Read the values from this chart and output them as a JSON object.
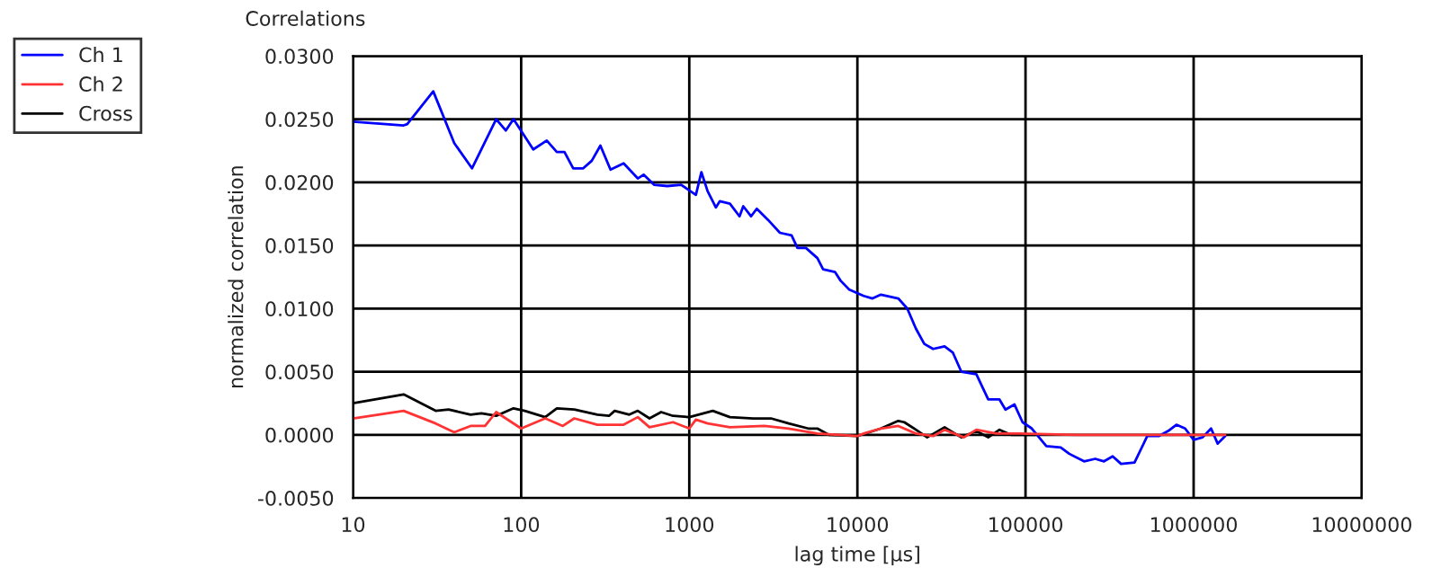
{
  "chart_data": {
    "type": "line",
    "title": "Correlations",
    "xlabel": "lag time [µs]",
    "ylabel": "normalized correlation",
    "log": "x",
    "xlim": [
      10,
      10000000
    ],
    "xticks": [
      10,
      100,
      1000,
      10000,
      100000,
      1000000,
      10000000
    ],
    "ylim": [
      -0.005,
      0.03
    ],
    "yticks": [
      {
        "value": -0.005,
        "label": "-0.0050"
      },
      {
        "value": 0,
        "label": "0.0000"
      },
      {
        "value": 0.005,
        "label": "0.0050"
      },
      {
        "value": 0.01,
        "label": "0.0100"
      },
      {
        "value": 0.015,
        "label": "0.0150"
      },
      {
        "value": 0.02,
        "label": "0.0200"
      },
      {
        "value": 0.025,
        "label": "0.0250"
      },
      {
        "value": 0.03,
        "label": "0.0300"
      }
    ],
    "grid": true,
    "legend": "top left",
    "line_style": "solid",
    "marker": "none",
    "series": [
      {
        "name": "Ch 1",
        "color": "#0000ff",
        "x": [
          10,
          20,
          21,
          30,
          40,
          51,
          71,
          81,
          90,
          118,
          142,
          163,
          181,
          204,
          234,
          263,
          296,
          340,
          407,
          494,
          535,
          617,
          740,
          895,
          1095,
          1180,
          1285,
          1440,
          1520,
          1745,
          1990,
          2095,
          2330,
          2520,
          2950,
          3460,
          4060,
          4400,
          4940,
          5780,
          6250,
          7350,
          7950,
          8950,
          10900,
          12300,
          13800,
          17500,
          19800,
          22300,
          25000,
          28200,
          33000,
          37000,
          41500,
          51000,
          60000,
          70000,
          76000,
          86000,
          96000,
          109000,
          133000,
          162000,
          182000,
          223000,
          260000,
          293000,
          330000,
          370000,
          445000,
          530000,
          620000,
          705000,
          790000,
          890000,
          1000000,
          1130000,
          1270000,
          1390000,
          1540000
        ],
        "values": [
          0.0248,
          0.0245,
          0.0246,
          0.0272,
          0.0231,
          0.0211,
          0.025,
          0.0241,
          0.025,
          0.0226,
          0.0233,
          0.0224,
          0.0224,
          0.0211,
          0.0211,
          0.0217,
          0.0229,
          0.021,
          0.0215,
          0.0203,
          0.0206,
          0.0198,
          0.0197,
          0.0198,
          0.019,
          0.0208,
          0.0193,
          0.018,
          0.0185,
          0.0183,
          0.0173,
          0.0181,
          0.0173,
          0.0179,
          0.017,
          0.016,
          0.0158,
          0.0148,
          0.0148,
          0.014,
          0.0131,
          0.0129,
          0.0122,
          0.0115,
          0.011,
          0.0108,
          0.0111,
          0.0108,
          0.01,
          0.0084,
          0.0072,
          0.0068,
          0.007,
          0.0065,
          0.005,
          0.0048,
          0.0028,
          0.0028,
          0.002,
          0.0024,
          0.001,
          0.0005,
          -0.0009,
          -0.001,
          -0.0015,
          -0.0021,
          -0.0019,
          -0.0021,
          -0.0017,
          -0.0023,
          -0.0022,
          -0.0001,
          -0.0001,
          0.0003,
          0.0008,
          0.0005,
          -0.0004,
          -0.0002,
          0.0005,
          -0.0007,
          -0.0001
        ]
      },
      {
        "name": "Ch 2",
        "color": "#ff3333",
        "x": [
          10,
          20,
          31,
          40,
          50,
          61,
          71,
          100,
          139,
          177,
          207,
          284,
          407,
          494,
          580,
          800,
          1000,
          1095,
          1285,
          1745,
          2800,
          3900,
          5780,
          10000,
          10900,
          13800,
          17500,
          22300,
          28200,
          33000,
          43000,
          51000,
          67000,
          92000,
          200000,
          690000,
          1540000
        ],
        "values": [
          0.0013,
          0.0019,
          0.0009,
          0.0002,
          0.0007,
          0.0007,
          0.0018,
          0.0005,
          0.0013,
          0.0007,
          0.0013,
          0.0008,
          0.0008,
          0.0014,
          0.0006,
          0.001,
          0.0005,
          0.0012,
          0.0009,
          0.0006,
          0.0007,
          0.0005,
          0.0001,
          -0.0001,
          0.0001,
          0.0005,
          0.0007,
          0.0001,
          -0.0001,
          0.0004,
          -0.0002,
          0.0004,
          0.0001,
          0.0001,
          0.0,
          0.0,
          0.0
        ]
      },
      {
        "name": "Cross",
        "color": "#000000",
        "x": [
          10,
          20,
          31,
          37,
          50,
          58,
          71,
          90,
          105,
          139,
          163,
          207,
          284,
          333,
          360,
          440,
          494,
          580,
          680,
          800,
          1000,
          1380,
          1745,
          2400,
          3060,
          3900,
          5100,
          5780,
          6750,
          10000,
          13800,
          17500,
          19000,
          22300,
          26000,
          33000,
          41500,
          51000,
          60000,
          70000,
          82000,
          115000
        ],
        "values": [
          0.0025,
          0.0032,
          0.0019,
          0.002,
          0.0016,
          0.0017,
          0.0015,
          0.0021,
          0.0019,
          0.0014,
          0.0021,
          0.002,
          0.0016,
          0.0015,
          0.0019,
          0.0016,
          0.0019,
          0.0013,
          0.0018,
          0.0015,
          0.0014,
          0.0019,
          0.0014,
          0.0013,
          0.0013,
          0.0009,
          0.0005,
          0.0005,
          0.0,
          -0.0001,
          0.0005,
          0.0011,
          0.001,
          0.0004,
          -0.0002,
          0.0006,
          -0.0002,
          0.0003,
          -0.0002,
          0.0004,
          0.0,
          0.0
        ]
      }
    ]
  }
}
